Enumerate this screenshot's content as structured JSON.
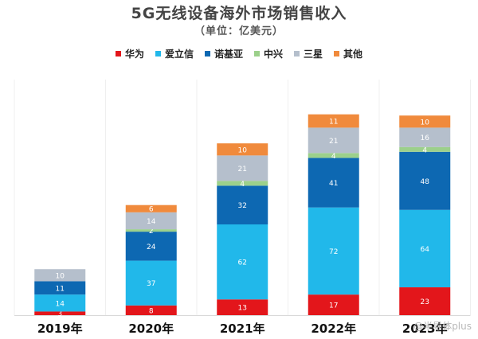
{
  "chart_data": {
    "type": "bar",
    "stacked": true,
    "title": "5G无线设备海外市场销售收入",
    "subtitle": "（单位：亿美元）",
    "categories": [
      "2019年",
      "2020年",
      "2021年",
      "2022年",
      "2023年"
    ],
    "series": [
      {
        "name": "华为",
        "color": "#e3161b",
        "values": [
          3,
          8,
          13,
          17,
          23
        ]
      },
      {
        "name": "爱立信",
        "color": "#21b8ea",
        "values": [
          14,
          37,
          62,
          72,
          64
        ]
      },
      {
        "name": "诺基亚",
        "color": "#0d68b2",
        "values": [
          11,
          24,
          32,
          41,
          48
        ]
      },
      {
        "name": "中兴",
        "color": "#9cd08b",
        "values": [
          0,
          2,
          4,
          4,
          4
        ]
      },
      {
        "name": "三星",
        "color": "#b5bfcc",
        "values": [
          10,
          14,
          21,
          21,
          16
        ]
      },
      {
        "name": "其他",
        "color": "#f08a3c",
        "values": [
          0,
          6,
          10,
          11,
          10
        ]
      }
    ],
    "legend_position": "top-center",
    "grid": false
  },
  "watermark": "@半导体plus"
}
